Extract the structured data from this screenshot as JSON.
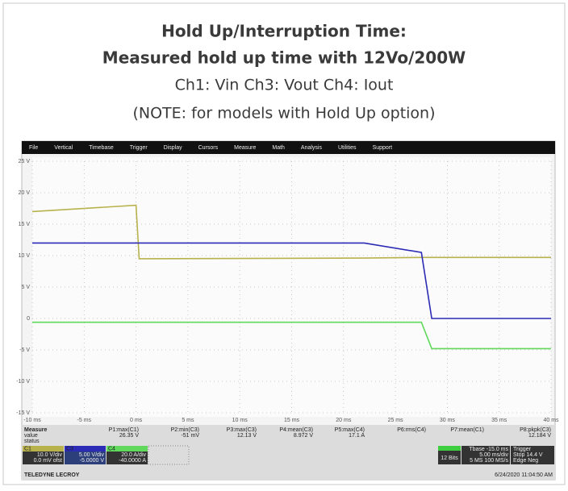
{
  "chart_data": {
    "type": "line",
    "title": "Hold Up/Interruption Time:",
    "subtitle": "Measured hold up time with 12Vo/200W",
    "channels_note": "Ch1: Vin Ch3: Vout Ch4: Iout",
    "note": "(NOTE: for models with Hold Up option)",
    "x": [
      -10,
      0,
      0.3,
      22,
      27.5,
      28.5,
      40
    ],
    "series": [
      {
        "name": "C1",
        "color": "#b8b24c",
        "values": [
          17,
          18,
          9.5,
          9.6,
          9.7,
          9.7,
          9.7
        ]
      },
      {
        "name": "C3",
        "color": "#2b2bb5",
        "values": [
          12,
          12,
          12,
          12,
          10.5,
          0,
          0
        ]
      },
      {
        "name": "C4",
        "color": "#5fd85c",
        "values": [
          -0.6,
          -0.6,
          -0.6,
          -0.6,
          -0.6,
          -4.8,
          -4.8
        ]
      }
    ],
    "xlim": [
      -10,
      40
    ],
    "xticks": [
      {
        "value": -10,
        "label": "-10 ms"
      },
      {
        "value": -5,
        "label": "-5 ms"
      },
      {
        "value": 0,
        "label": "0 ms"
      },
      {
        "value": 5,
        "label": "5 ms"
      },
      {
        "value": 10,
        "label": "10 ms"
      },
      {
        "value": 15,
        "label": "15 ms"
      },
      {
        "value": 20,
        "label": "20 ms"
      },
      {
        "value": 25,
        "label": "25 ms"
      },
      {
        "value": 30,
        "label": "30 ms"
      },
      {
        "value": 35,
        "label": "35 ms"
      },
      {
        "value": 40,
        "label": "40 ms"
      }
    ],
    "ylim": [
      -15,
      25
    ],
    "yticks": [
      {
        "value": -15,
        "label": "-15 V"
      },
      {
        "value": -10,
        "label": "-10 V"
      },
      {
        "value": -5,
        "label": "-5 V"
      },
      {
        "value": 0,
        "label": "0"
      },
      {
        "value": 5,
        "label": "5 V"
      },
      {
        "value": 10,
        "label": "10 V"
      },
      {
        "value": 15,
        "label": "15 V"
      },
      {
        "value": 20,
        "label": "20 V"
      },
      {
        "value": 25,
        "label": "25 V"
      }
    ],
    "grid": true
  },
  "scope": {
    "menu": [
      "File",
      "Vertical",
      "Timebase",
      "Trigger",
      "Display",
      "Cursors",
      "Measure",
      "Math",
      "Analysis",
      "Utilities",
      "Support"
    ],
    "measure_label": "Measure",
    "rows": [
      "value",
      "status"
    ],
    "params": [
      {
        "name": "P1:max(C1)",
        "value": "26.35 V"
      },
      {
        "name": "P2:min(C3)",
        "value": "-51 mV"
      },
      {
        "name": "P3:max(C3)",
        "value": "12.13 V"
      },
      {
        "name": "P4:mean(C3)",
        "value": "8.972 V"
      },
      {
        "name": "P5:max(C4)",
        "value": "17.1 A"
      },
      {
        "name": "P6:rms(C4)"
      },
      {
        "name": "P7:mean(C1)"
      },
      {
        "name": "P8:pkpk(C3)",
        "value": "12.184 V"
      }
    ],
    "channels": [
      {
        "name": "C1",
        "scale": "10.0 V/div",
        "offset": "0.0 mV ofst"
      },
      {
        "name": "C3",
        "scale": "5.00 V/div",
        "offset": "-5.0000 V"
      },
      {
        "name": "C4",
        "scale": "20.0 A/div",
        "offset": "-40.0000 A"
      }
    ],
    "bits": "12 Bits",
    "timebase": [
      "Tbase -15.0 ms",
      "5.00 ms/div",
      "5 MS 100 MS/s"
    ],
    "trigger": [
      "Trigger",
      "Stop 14.4 V",
      "Edge Neg"
    ],
    "timestamp": "6/24/2020 11:04:50 AM",
    "brand": "TELEDYNE LECROY"
  }
}
